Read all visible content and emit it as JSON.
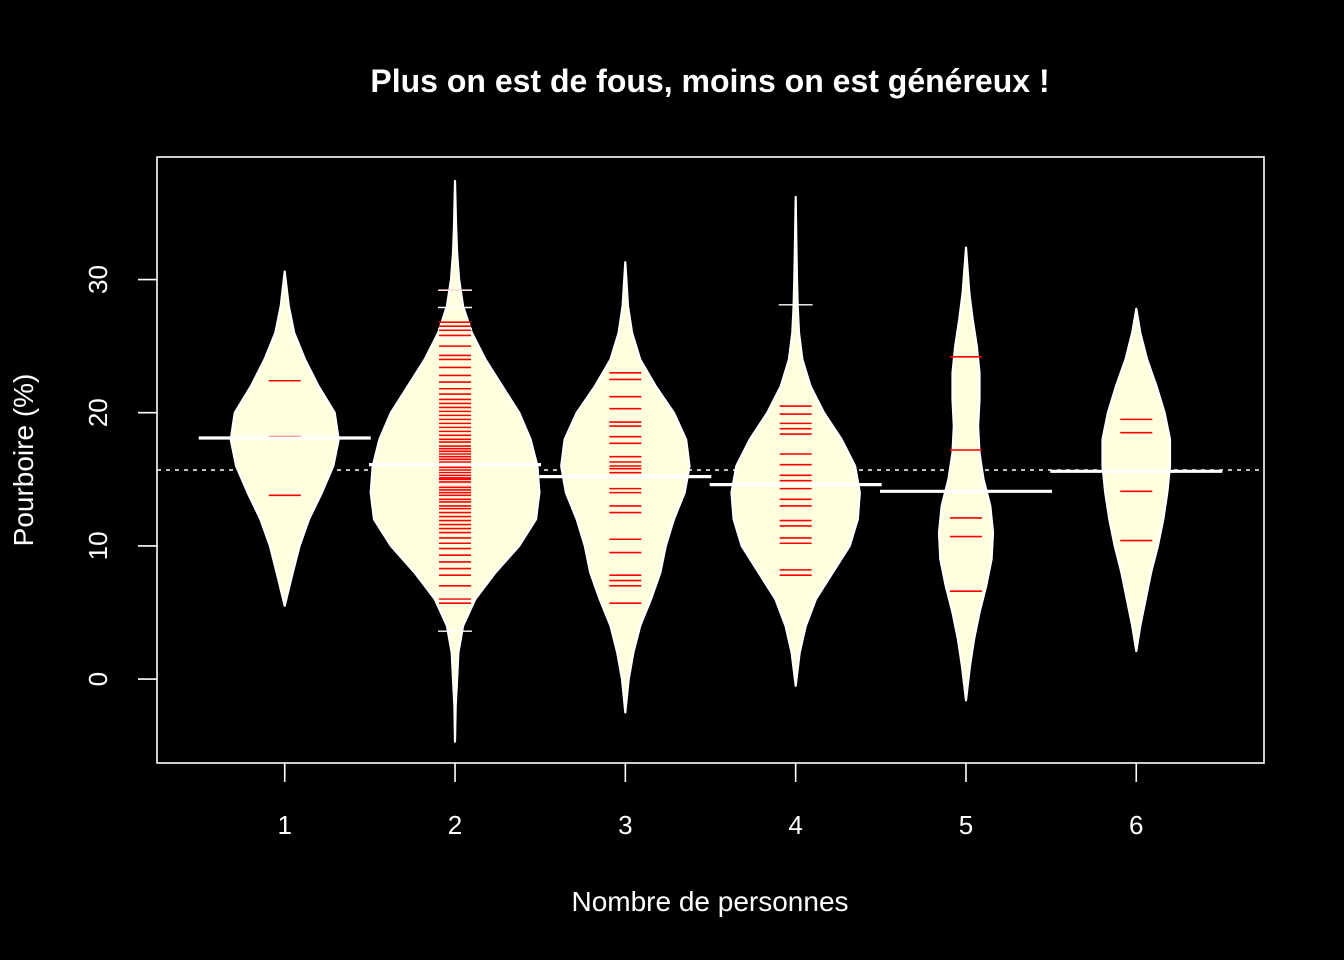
{
  "chart_data": {
    "type": "beanplot",
    "title": "Plus on est de fous, moins on est généreux !",
    "xlabel": "Nombre de personnes",
    "ylabel": "Pourboire (%)",
    "categories": [
      "1",
      "2",
      "3",
      "4",
      "5",
      "6"
    ],
    "yticks": [
      "0",
      "10",
      "20",
      "30"
    ],
    "ylim": [
      -6.3,
      39.2
    ],
    "xlim": [
      0.25,
      6.75
    ],
    "overall_mean": 15.7,
    "grid": false,
    "legend": "none",
    "colors": {
      "background": "#000000",
      "bean_fill": "#ffffe0",
      "bean_stroke": "#ffffff",
      "observation": "#ff0000",
      "outlier_line": "#ffffff",
      "mean_line": "#ffffff",
      "text": "#ffffff"
    },
    "beans": [
      {
        "group": "1",
        "mean": 18.1,
        "density": [
          [
            5.5,
            0
          ],
          [
            8,
            0.12
          ],
          [
            10,
            0.22
          ],
          [
            12,
            0.36
          ],
          [
            14,
            0.55
          ],
          [
            16,
            0.72
          ],
          [
            18,
            0.8
          ],
          [
            20,
            0.74
          ],
          [
            22,
            0.5
          ],
          [
            24,
            0.3
          ],
          [
            26,
            0.14
          ],
          [
            28,
            0.06
          ],
          [
            30.6,
            0
          ]
        ],
        "observations": [
          13.8,
          18.2,
          22.4
        ],
        "outliers": []
      },
      {
        "group": "2",
        "mean": 16.1,
        "density": [
          [
            -4.7,
            0
          ],
          [
            -2,
            0.01
          ],
          [
            0,
            0.03
          ],
          [
            2,
            0.05
          ],
          [
            4,
            0.12
          ],
          [
            6,
            0.3
          ],
          [
            8,
            0.6
          ],
          [
            10,
            0.95
          ],
          [
            12,
            1.2
          ],
          [
            14,
            1.25
          ],
          [
            16,
            1.22
          ],
          [
            18,
            1.12
          ],
          [
            20,
            0.95
          ],
          [
            22,
            0.7
          ],
          [
            24,
            0.45
          ],
          [
            26,
            0.25
          ],
          [
            28,
            0.12
          ],
          [
            30,
            0.06
          ],
          [
            32,
            0.03
          ],
          [
            34,
            0.015
          ],
          [
            37.4,
            0
          ]
        ],
        "observations": [
          5.7,
          6.0,
          7.0,
          7.8,
          8.3,
          8.8,
          9.3,
          9.8,
          10.2,
          10.6,
          11.0,
          11.3,
          11.6,
          11.9,
          12.2,
          12.5,
          12.8,
          13.0,
          13.3,
          13.5,
          13.8,
          14.0,
          14.2,
          14.4,
          14.6,
          14.8,
          15.0,
          15.1,
          15.3,
          15.5,
          15.7,
          15.9,
          16.1,
          16.3,
          16.5,
          16.7,
          16.9,
          17.1,
          17.3,
          17.5,
          17.8,
          18.0,
          18.3,
          18.6,
          18.9,
          19.2,
          19.5,
          19.8,
          20.1,
          20.4,
          20.7,
          21.0,
          21.4,
          21.8,
          22.3,
          22.8,
          23.4,
          24.0,
          24.3,
          25.0,
          25.8,
          26.2,
          26.5,
          26.8,
          29.2
        ],
        "outliers": [
          3.6,
          5.9,
          14.6,
          15.4,
          25.6,
          26.3,
          27.9,
          29.2
        ]
      },
      {
        "group": "3",
        "mean": 15.2,
        "density": [
          [
            -2.5,
            0
          ],
          [
            0,
            0.05
          ],
          [
            2,
            0.12
          ],
          [
            4,
            0.22
          ],
          [
            6,
            0.38
          ],
          [
            8,
            0.52
          ],
          [
            10,
            0.6
          ],
          [
            12,
            0.72
          ],
          [
            14,
            0.88
          ],
          [
            16,
            0.95
          ],
          [
            18,
            0.9
          ],
          [
            20,
            0.72
          ],
          [
            22,
            0.45
          ],
          [
            24,
            0.22
          ],
          [
            26,
            0.1
          ],
          [
            28,
            0.04
          ],
          [
            31.3,
            0
          ]
        ],
        "observations": [
          5.7,
          7.0,
          7.4,
          7.8,
          9.5,
          10.5,
          12.5,
          13.0,
          14.0,
          14.3,
          15.5,
          15.8,
          16.0,
          16.3,
          16.7,
          17.7,
          18.2,
          19.0,
          19.3,
          20.3,
          21.2,
          22.5,
          23.0
        ],
        "outliers": []
      },
      {
        "group": "4",
        "mean": 14.6,
        "density": [
          [
            -0.5,
            0
          ],
          [
            2,
            0.06
          ],
          [
            4,
            0.15
          ],
          [
            6,
            0.3
          ],
          [
            8,
            0.55
          ],
          [
            10,
            0.8
          ],
          [
            12,
            0.92
          ],
          [
            14,
            0.95
          ],
          [
            16,
            0.88
          ],
          [
            18,
            0.68
          ],
          [
            20,
            0.42
          ],
          [
            22,
            0.22
          ],
          [
            24,
            0.1
          ],
          [
            26,
            0.05
          ],
          [
            28,
            0.03
          ],
          [
            30,
            0.02
          ],
          [
            33,
            0.01
          ],
          [
            36.2,
            0
          ]
        ],
        "observations": [
          7.8,
          8.2,
          10.2,
          10.6,
          11.5,
          11.9,
          13.0,
          13.5,
          14.3,
          14.9,
          15.3,
          16.1,
          16.9,
          18.4,
          18.8,
          19.2,
          19.9,
          20.5
        ],
        "outliers": [
          28.1
        ]
      },
      {
        "group": "5",
        "mean": 14.1,
        "density": [
          [
            -1.6,
            0
          ],
          [
            1,
            0.06
          ],
          [
            3,
            0.12
          ],
          [
            5,
            0.2
          ],
          [
            7,
            0.3
          ],
          [
            9,
            0.38
          ],
          [
            11,
            0.4
          ],
          [
            13,
            0.36
          ],
          [
            15,
            0.26
          ],
          [
            17,
            0.2
          ],
          [
            19,
            0.18
          ],
          [
            21,
            0.2
          ],
          [
            23,
            0.2
          ],
          [
            25,
            0.16
          ],
          [
            27,
            0.1
          ],
          [
            29,
            0.05
          ],
          [
            32.4,
            0
          ]
        ],
        "observations": [
          6.6,
          10.7,
          12.1,
          17.2,
          24.2
        ],
        "outliers": []
      },
      {
        "group": "6",
        "mean": 15.6,
        "density": [
          [
            2.1,
            0
          ],
          [
            4,
            0.06
          ],
          [
            6,
            0.14
          ],
          [
            8,
            0.22
          ],
          [
            10,
            0.32
          ],
          [
            12,
            0.4
          ],
          [
            14,
            0.46
          ],
          [
            16,
            0.5
          ],
          [
            18,
            0.5
          ],
          [
            20,
            0.42
          ],
          [
            22,
            0.3
          ],
          [
            24,
            0.16
          ],
          [
            26,
            0.06
          ],
          [
            27.8,
            0
          ]
        ],
        "observations": [
          10.4,
          14.1,
          18.5,
          19.5
        ],
        "outliers": []
      }
    ]
  }
}
